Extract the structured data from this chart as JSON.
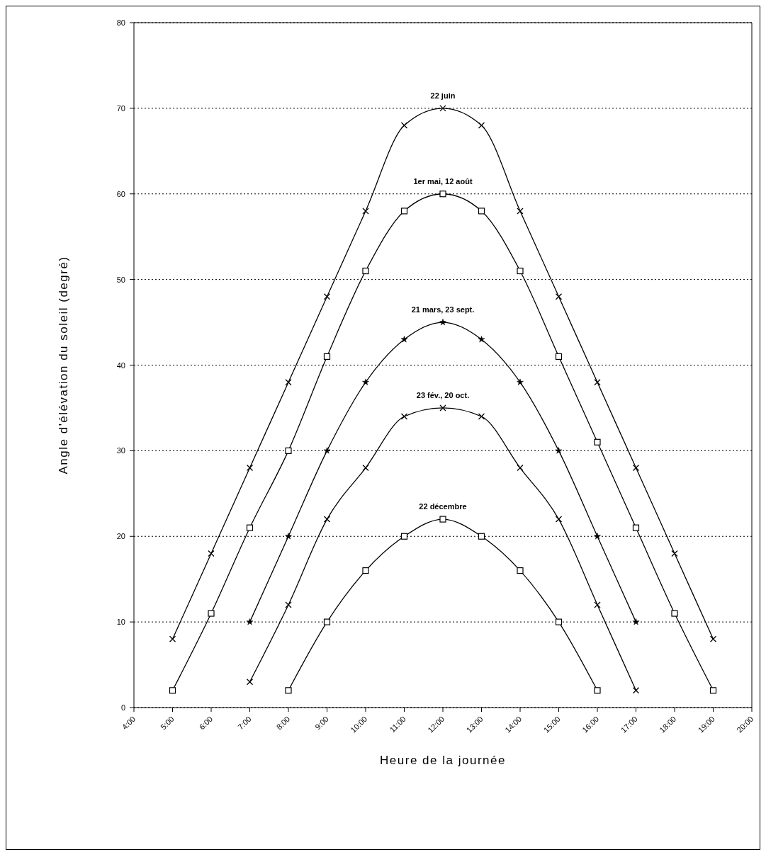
{
  "chart_data": {
    "type": "line",
    "xlabel": "Heure de la journée",
    "ylabel": "Angle d'élévation du soleil (degré)",
    "xlim": [
      4,
      20
    ],
    "xticks": [
      {
        "value": 4,
        "label": "4:00"
      },
      {
        "value": 5,
        "label": "5:00"
      },
      {
        "value": 6,
        "label": "6:00"
      },
      {
        "value": 7,
        "label": "7:00"
      },
      {
        "value": 8,
        "label": "8:00"
      },
      {
        "value": 9,
        "label": "9:00"
      },
      {
        "value": 10,
        "label": "10:00"
      },
      {
        "value": 11,
        "label": "11:00"
      },
      {
        "value": 12,
        "label": "12:00"
      },
      {
        "value": 13,
        "label": "13:00"
      },
      {
        "value": 14,
        "label": "14:00"
      },
      {
        "value": 15,
        "label": "15:00"
      },
      {
        "value": 16,
        "label": "16:00"
      },
      {
        "value": 17,
        "label": "17:00"
      },
      {
        "value": 18,
        "label": "18:00"
      },
      {
        "value": 19,
        "label": "19:00"
      },
      {
        "value": 20,
        "label": "20:00"
      }
    ],
    "ylim": [
      0,
      80
    ],
    "yticks": [
      0,
      10,
      20,
      30,
      40,
      50,
      60,
      70,
      80
    ],
    "grid": "y",
    "legend": false,
    "line_style": "solid",
    "series": [
      {
        "name": "22 juin",
        "color": "#000000",
        "marker": "cross",
        "x": [
          5,
          6,
          7,
          8,
          9,
          10,
          11,
          12,
          13,
          14,
          15,
          16,
          17,
          18,
          19
        ],
        "values": [
          8,
          18,
          28,
          38,
          48,
          58,
          68,
          70,
          68,
          58,
          48,
          38,
          28,
          18,
          8
        ]
      },
      {
        "name": "1er mai, 12 août",
        "color": "#000000",
        "marker": "square",
        "x": [
          5,
          6,
          7,
          8,
          9,
          10,
          11,
          12,
          13,
          14,
          15,
          16,
          17,
          18,
          19
        ],
        "values": [
          2,
          11,
          21,
          30,
          41,
          51,
          58,
          60,
          58,
          51,
          41,
          31,
          21,
          11,
          2
        ]
      },
      {
        "name": "21 mars, 23 sept.",
        "color": "#000000",
        "marker": "star",
        "x": [
          7,
          8,
          9,
          10,
          11,
          12,
          13,
          14,
          15,
          16,
          17
        ],
        "values": [
          10,
          20,
          30,
          38,
          43,
          45,
          43,
          38,
          30,
          20,
          10
        ]
      },
      {
        "name": "23 fév., 20 oct.",
        "color": "#000000",
        "marker": "cross",
        "x": [
          7,
          8,
          9,
          10,
          11,
          12,
          13,
          14,
          15,
          16,
          17
        ],
        "values": [
          3,
          12,
          22,
          28,
          34,
          35,
          34,
          28,
          22,
          12,
          2
        ]
      },
      {
        "name": "22 décembre",
        "color": "#000000",
        "marker": "square",
        "x": [
          8,
          9,
          10,
          11,
          12,
          13,
          14,
          15,
          16
        ],
        "values": [
          2,
          10,
          16,
          20,
          22,
          20,
          16,
          10,
          2
        ]
      }
    ]
  }
}
